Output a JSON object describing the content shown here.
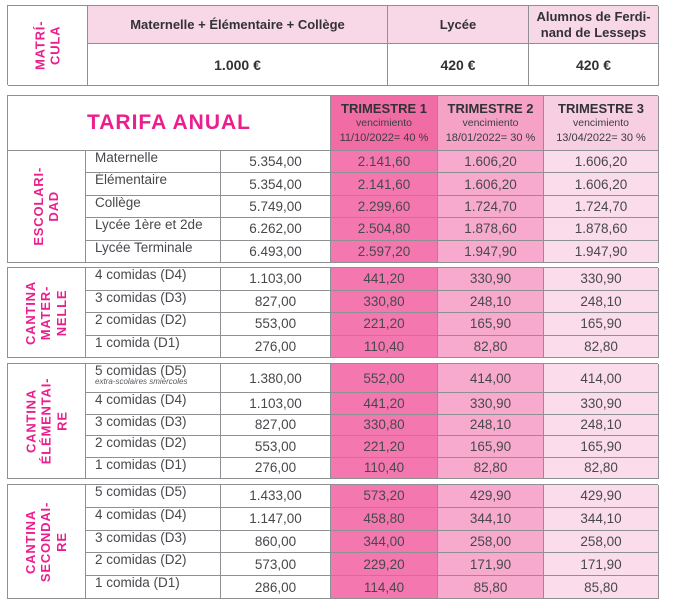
{
  "colors": {
    "brand_pink": "#EC1E8E",
    "light_pink_header": "#F8D7E6",
    "trimester1_header": "#F16CA4",
    "trimester1_cell": "#F478AF",
    "trimester2_header": "#F6A2C7",
    "trimester2_cell": "#F8AACE",
    "trimester3_header": "#F8CFE2",
    "trimester3_cell": "#FBDCEB",
    "border_gray": "#8F9093"
  },
  "matricula": {
    "label_lines": "MATRÍ-\nCULA",
    "columns": [
      {
        "header": "Maternelle + Élémentaire + Collège",
        "value": "1.000 €"
      },
      {
        "header": "Lycée",
        "value": "420 €"
      },
      {
        "header": "Alumnos de Ferdi-\nnand de Lesseps",
        "value": "420 €"
      }
    ]
  },
  "tarifa": {
    "title": "TARIFA ANUAL",
    "trimesters": [
      {
        "name": "TRIMESTRE 1",
        "subtitle": "vencimiento",
        "due": "11/10/2022= 40 %"
      },
      {
        "name": "TRIMESTRE 2",
        "subtitle": "vencimiento",
        "due": "18/01/2022= 30 %"
      },
      {
        "name": "TRIMESTRE 3",
        "subtitle": "vencimiento",
        "due": "13/04/2022= 30 %"
      }
    ],
    "sections": [
      {
        "id": "escolaridad",
        "label_lines": "ESCOLARI-\nDAD",
        "rows": [
          {
            "name": "Maternelle",
            "annual": "5.354,00",
            "t1": "2.141,60",
            "t2": "1.606,20",
            "t3": "1.606,20"
          },
          {
            "name": "Élémentaire",
            "annual": "5.354,00",
            "t1": "2.141,60",
            "t2": "1.606,20",
            "t3": "1.606,20"
          },
          {
            "name": "Collège",
            "annual": "5.749,00",
            "t1": "2.299,60",
            "t2": "1.724,70",
            "t3": "1.724,70"
          },
          {
            "name": "Lycée 1ère et 2de",
            "annual": "6.262,00",
            "t1": "2.504,80",
            "t2": "1.878,60",
            "t3": "1.878,60"
          },
          {
            "name": "Lycée Terminale",
            "annual": "6.493,00",
            "t1": "2.597,20",
            "t2": "1.947,90",
            "t3": "1.947,90"
          }
        ]
      },
      {
        "id": "cantina-maternelle",
        "label_lines": "CANTINA\nMATER-\nNELLE",
        "rows": [
          {
            "name": "4 comidas (D4)",
            "annual": "1.103,00",
            "t1": "441,20",
            "t2": "330,90",
            "t3": "330,90"
          },
          {
            "name": "3 comidas (D3)",
            "annual": "827,00",
            "t1": "330,80",
            "t2": "248,10",
            "t3": "248,10"
          },
          {
            "name": "2 comidas (D2)",
            "annual": "553,00",
            "t1": "221,20",
            "t2": "165,90",
            "t3": "165,90"
          },
          {
            "name": "1 comida (D1)",
            "annual": "276,00",
            "t1": "110,40",
            "t2": "82,80",
            "t3": "82,80"
          }
        ]
      },
      {
        "id": "cantina-elementaire",
        "label_lines": "CANTINA\nÉLÉMENTAI-\nRE",
        "rows": [
          {
            "name": "5 comidas (D5)",
            "note": "extra-scolaires smiércoles",
            "annual": "1.380,00",
            "t1": "552,00",
            "t2": "414,00",
            "t3": "414,00"
          },
          {
            "name": "4 comidas (D4)",
            "annual": "1.103,00",
            "t1": "441,20",
            "t2": "330,90",
            "t3": "330,90"
          },
          {
            "name": "3 comidas (D3)",
            "annual": "827,00",
            "t1": "330,80",
            "t2": "248,10",
            "t3": "248,10"
          },
          {
            "name": "2 comidas (D2)",
            "annual": "553,00",
            "t1": "221,20",
            "t2": "165,90",
            "t3": "165,90"
          },
          {
            "name": "1 comidas (D1)",
            "annual": "276,00",
            "t1": "110,40",
            "t2": "82,80",
            "t3": "82,80"
          }
        ]
      },
      {
        "id": "cantina-secondaire",
        "label_lines": "CANTINA\nSECONDAI-\nRE",
        "rows": [
          {
            "name": "5 comidas (D5)",
            "annual": "1.433,00",
            "t1": "573,20",
            "t2": "429,90",
            "t3": "429,90"
          },
          {
            "name": "4 comidas (D4)",
            "annual": "1.147,00",
            "t1": "458,80",
            "t2": "344,10",
            "t3": "344,10"
          },
          {
            "name": "3 comidas (D3)",
            "annual": "860,00",
            "t1": "344,00",
            "t2": "258,00",
            "t3": "258,00"
          },
          {
            "name": "2 comidas (D2)",
            "annual": "573,00",
            "t1": "229,20",
            "t2": "171,90",
            "t3": "171,90"
          },
          {
            "name": "1 comida (D1)",
            "annual": "286,00",
            "t1": "114,40",
            "t2": "85,80",
            "t3": "85,80"
          }
        ]
      }
    ]
  }
}
